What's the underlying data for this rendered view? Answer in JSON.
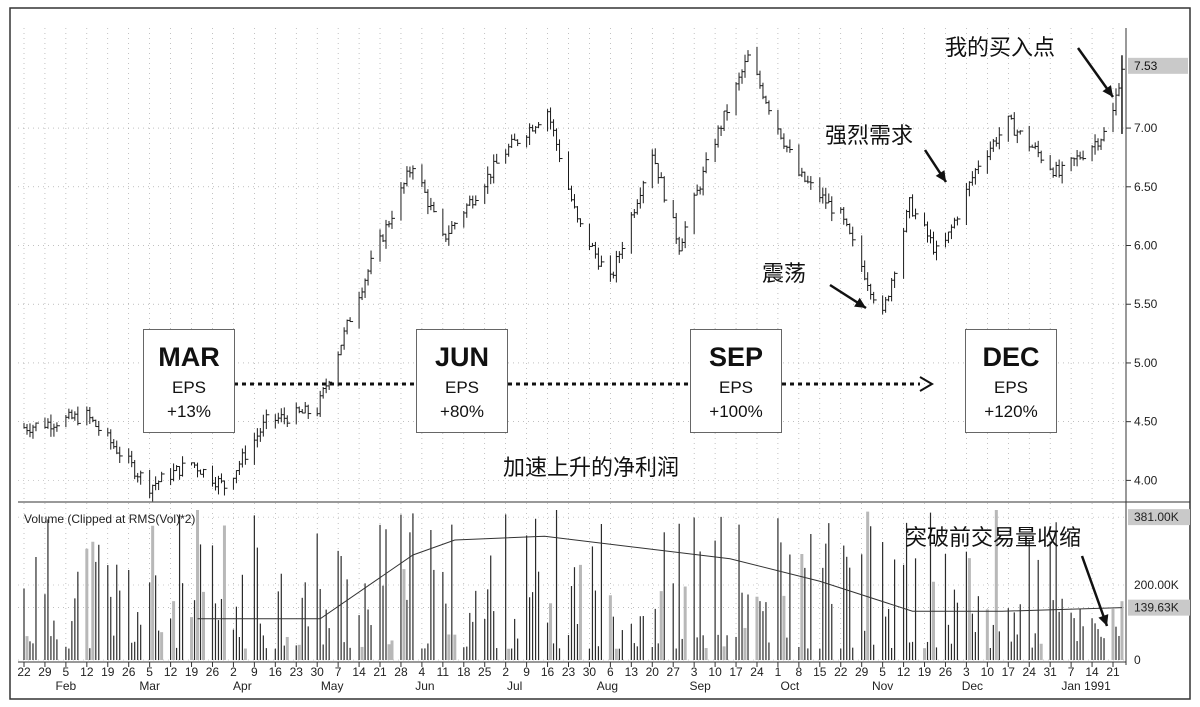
{
  "chart_data": {
    "type": "bar",
    "subtype": "ohlc-with-volume",
    "price_axis": {
      "ticks": [
        "4.00",
        "4.50",
        "5.00",
        "5.50",
        "6.00",
        "6.50",
        "7.00"
      ],
      "ylim": [
        3.85,
        7.75
      ],
      "last_price_label": "7.53"
    },
    "volume_axis": {
      "title": "Volume (Clipped at RMS(Vol)*2)",
      "ticks": [
        "381.00K",
        "200.00K",
        "139.63K",
        "0"
      ]
    },
    "x_day_ticks": [
      "22",
      "29",
      "5",
      "12",
      "19",
      "26",
      "5",
      "12",
      "19",
      "26",
      "2",
      "9",
      "16",
      "23",
      "30",
      "7",
      "14",
      "21",
      "28",
      "4",
      "11",
      "18",
      "25",
      "2",
      "9",
      "16",
      "23",
      "30",
      "6",
      "13",
      "20",
      "27",
      "3",
      "10",
      "17",
      "24",
      "1",
      "8",
      "15",
      "22",
      "29",
      "5",
      "12",
      "19",
      "26",
      "3",
      "10",
      "17",
      "24",
      "31",
      "7",
      "14",
      "21"
    ],
    "x_month_labels": [
      "Feb",
      "Mar",
      "Apr",
      "May",
      "Jun",
      "Jul",
      "Aug",
      "Sep",
      "Oct",
      "Nov",
      "Dec",
      "Jan 1991"
    ],
    "price_anchor_points": [
      {
        "date": "1990-01-22",
        "close": 4.45
      },
      {
        "date": "1990-02-12",
        "close": 4.55
      },
      {
        "date": "1990-03-05",
        "close": 3.95
      },
      {
        "date": "1990-03-19",
        "close": 4.15
      },
      {
        "date": "1990-03-30",
        "close": 3.95
      },
      {
        "date": "1990-04-13",
        "close": 4.5
      },
      {
        "date": "1990-04-30",
        "close": 4.6
      },
      {
        "date": "1990-05-14",
        "close": 5.6
      },
      {
        "date": "1990-06-01",
        "close": 6.7
      },
      {
        "date": "1990-06-11",
        "close": 6.05
      },
      {
        "date": "1990-07-02",
        "close": 6.8
      },
      {
        "date": "1990-07-16",
        "close": 7.15
      },
      {
        "date": "1990-07-26",
        "close": 6.2
      },
      {
        "date": "1990-08-06",
        "close": 5.7
      },
      {
        "date": "1990-08-20",
        "close": 6.8
      },
      {
        "date": "1990-08-29",
        "close": 6.0
      },
      {
        "date": "1990-09-10",
        "close": 6.9
      },
      {
        "date": "1990-09-21",
        "close": 7.6
      },
      {
        "date": "1990-10-08",
        "close": 6.6
      },
      {
        "date": "1990-10-22",
        "close": 6.25
      },
      {
        "date": "1990-11-05",
        "close": 5.4
      },
      {
        "date": "1990-11-14",
        "close": 6.35
      },
      {
        "date": "1990-11-24",
        "close": 5.9
      },
      {
        "date": "1990-12-07",
        "close": 6.7
      },
      {
        "date": "1990-12-17",
        "close": 7.05
      },
      {
        "date": "1991-01-03",
        "close": 6.6
      },
      {
        "date": "1991-01-20",
        "close": 7.0
      },
      {
        "date": "1991-01-24",
        "close": 7.53
      }
    ],
    "volume_moving_average": [
      {
        "date": "1990-03-21",
        "value": 110000
      },
      {
        "date": "1990-05-01",
        "value": 110000
      },
      {
        "date": "1990-06-01",
        "value": 280000
      },
      {
        "date": "1990-06-15",
        "value": 320000
      },
      {
        "date": "1990-07-15",
        "value": 330000
      },
      {
        "date": "1990-08-15",
        "value": 300000
      },
      {
        "date": "1990-09-15",
        "value": 270000
      },
      {
        "date": "1990-10-15",
        "value": 210000
      },
      {
        "date": "1990-11-15",
        "value": 130000
      },
      {
        "date": "1990-12-15",
        "value": 130000
      },
      {
        "date": "1991-01-24",
        "value": 139630
      }
    ],
    "quarters": [
      {
        "quarter": "MAR",
        "label": "EPS",
        "change": "+13%"
      },
      {
        "quarter": "JUN",
        "label": "EPS",
        "change": "+80%"
      },
      {
        "quarter": "SEP",
        "label": "EPS",
        "change": "+100%"
      },
      {
        "quarter": "DEC",
        "label": "EPS",
        "change": "+120%"
      }
    ],
    "annotations": {
      "buy_point": "我的买入点",
      "strong_demand": "强烈需求",
      "shakeout": "震荡",
      "accelerating_earnings": "加速上升的净利润",
      "volume_dryup": "突破前交易量收缩"
    },
    "grid": true
  },
  "colors": {
    "price_bar": "#1a1a1a",
    "volume_bar": "#2b2b2b",
    "volume_bar_light": "#b8b8b8",
    "grid": "#9a9a9a",
    "highlight_box": "#c9c9c9"
  }
}
